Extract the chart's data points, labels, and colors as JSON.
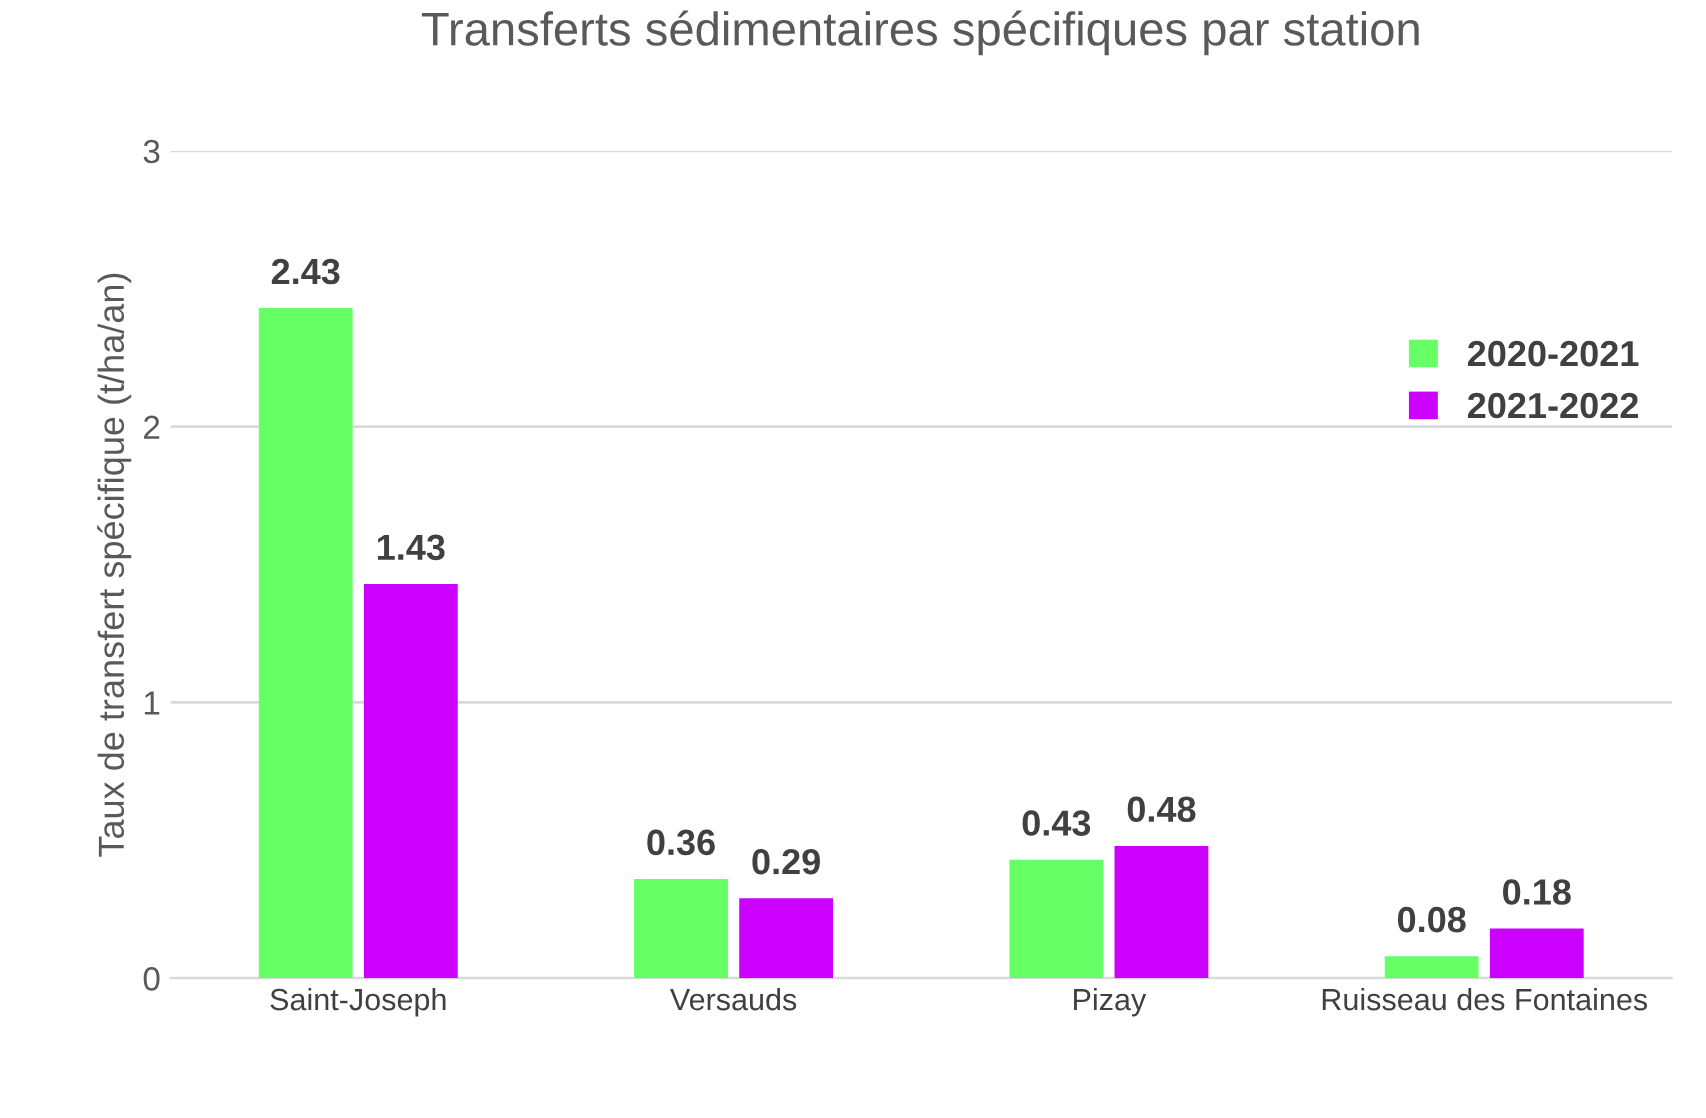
{
  "chart_data": {
    "type": "bar",
    "title": "Transferts sédimentaires spécifiques par station",
    "ylabel": "Taux de transfert spécifique (t/ha/an)",
    "categories": [
      "Saint-Joseph",
      "Versauds",
      "Pizay",
      "Ruisseau des Fontaines"
    ],
    "series": [
      {
        "name": "2020-2021",
        "color": "#66ff66",
        "values": [
          2.43,
          0.36,
          0.43,
          0.08
        ]
      },
      {
        "name": "2021-2022",
        "color": "#cc00ff",
        "values": [
          1.43,
          0.29,
          0.48,
          0.18
        ]
      }
    ],
    "ylim": [
      0,
      3
    ],
    "yticks": [
      0,
      1,
      2,
      3
    ],
    "grid": "y",
    "legend": "right",
    "data_labels": true
  }
}
